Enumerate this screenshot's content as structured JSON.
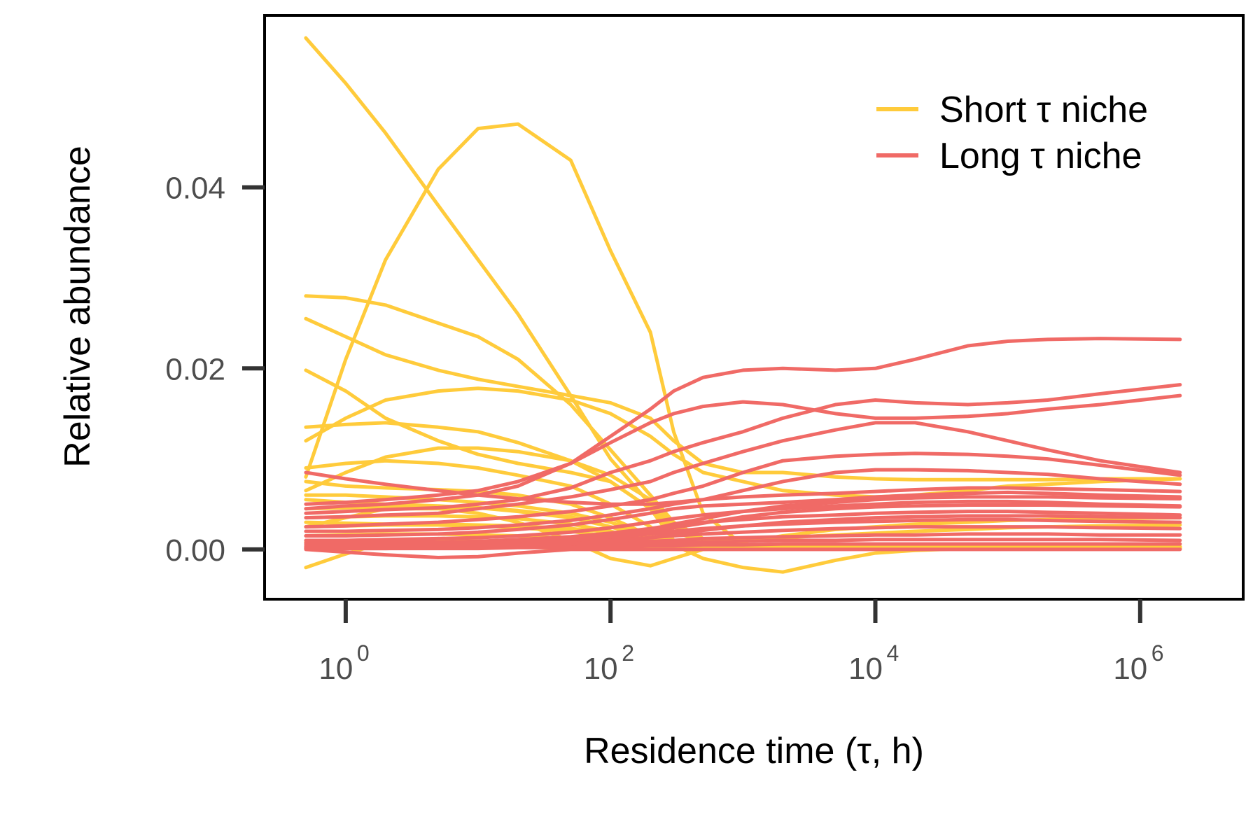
{
  "chart_data": {
    "type": "line",
    "xlabel": "Residence time (τ, h)",
    "ylabel": "Relative abundance",
    "xscale": "log10",
    "xlim": [
      0.25,
      6000000
    ],
    "ylim": [
      -0.0055,
      0.059
    ],
    "x_ticks": [
      {
        "value": 1,
        "base": "10",
        "exp": "0"
      },
      {
        "value": 100,
        "base": "10",
        "exp": "2"
      },
      {
        "value": 10000,
        "base": "10",
        "exp": "4"
      },
      {
        "value": 1000000,
        "base": "10",
        "exp": "6"
      }
    ],
    "y_ticks": [
      {
        "value": 0.0,
        "label": "0.00"
      },
      {
        "value": 0.02,
        "label": "0.02"
      },
      {
        "value": 0.04,
        "label": "0.04"
      }
    ],
    "grid": false,
    "legend_position": "top-right",
    "groups": [
      {
        "label": "Short τ niche",
        "color": "#FFCB3B"
      },
      {
        "label": "Long τ niche",
        "color": "#F06A66"
      }
    ],
    "x": [
      0.5,
      1,
      2,
      5,
      10,
      20,
      50,
      100,
      200,
      300,
      500,
      1000,
      2000,
      5000,
      10000,
      20000,
      50000,
      100000,
      200000,
      500000,
      2000000
    ],
    "series": [
      {
        "group": 0,
        "values": [
          0.0565,
          0.0515,
          0.046,
          0.038,
          0.032,
          0.026,
          0.017,
          0.01,
          0.005,
          0.0025,
          0.001,
          0.0003,
          0.0001,
          0.0001,
          0.0001,
          0.0001,
          0.0001,
          0.0001,
          0.0001,
          0.0001,
          0.0001
        ]
      },
      {
        "group": 0,
        "values": [
          0.008,
          0.021,
          0.032,
          0.042,
          0.0465,
          0.047,
          0.043,
          0.033,
          0.024,
          0.013,
          0.004,
          0.0005,
          0.0003,
          0.0002,
          0.0002,
          0.0002,
          0.0002,
          0.0002,
          0.0002,
          0.0002,
          0.0002
        ]
      },
      {
        "group": 0,
        "values": [
          0.028,
          0.0278,
          0.027,
          0.025,
          0.0235,
          0.021,
          0.016,
          0.011,
          0.006,
          0.003,
          0.0012,
          0.0004,
          0.0003,
          0.0003,
          0.0003,
          0.0003,
          0.0003,
          0.0003,
          0.0003,
          0.0003,
          0.0003
        ]
      },
      {
        "group": 0,
        "values": [
          0.0255,
          0.0235,
          0.0215,
          0.0198,
          0.0188,
          0.018,
          0.017,
          0.0162,
          0.0145,
          0.012,
          0.0095,
          0.0085,
          0.0085,
          0.008,
          0.0078,
          0.0077,
          0.0077,
          0.0077,
          0.0077,
          0.0078,
          0.0078
        ]
      },
      {
        "group": 0,
        "values": [
          0.0198,
          0.0175,
          0.0145,
          0.012,
          0.0105,
          0.0095,
          0.0085,
          0.0075,
          0.0045,
          0.001,
          0.0004,
          0.0003,
          0.0003,
          0.0003,
          0.0003,
          0.0003,
          0.0003,
          0.0003,
          0.0003,
          0.0003,
          0.0003
        ]
      },
      {
        "group": 0,
        "values": [
          0.012,
          0.0145,
          0.0165,
          0.0175,
          0.0178,
          0.0175,
          0.0165,
          0.015,
          0.0125,
          0.0105,
          0.0085,
          0.0075,
          0.0065,
          0.006,
          0.0058,
          0.006,
          0.0065,
          0.007,
          0.0072,
          0.0075,
          0.0078
        ]
      },
      {
        "group": 0,
        "values": [
          0.0135,
          0.0138,
          0.014,
          0.0135,
          0.013,
          0.0118,
          0.0098,
          0.0075,
          0.0045,
          0.002,
          0.0008,
          0.0004,
          0.0003,
          0.0003,
          0.0003,
          0.0003,
          0.0003,
          0.0003,
          0.0003,
          0.0003,
          0.0003
        ]
      },
      {
        "group": 0,
        "values": [
          0.0065,
          0.0085,
          0.0102,
          0.0112,
          0.0112,
          0.0108,
          0.0098,
          0.0082,
          0.0055,
          0.0025,
          0.001,
          0.0004,
          0.0003,
          0.0003,
          0.0003,
          0.0003,
          0.0003,
          0.0003,
          0.0003,
          0.0003,
          0.0003
        ]
      },
      {
        "group": 0,
        "values": [
          0.009,
          0.0095,
          0.0098,
          0.0095,
          0.009,
          0.0082,
          0.007,
          0.005,
          0.0025,
          0.0005,
          -0.001,
          -0.002,
          -0.0025,
          -0.0012,
          -0.0004,
          -0.0001,
          0.0001,
          0.0001,
          0.0001,
          0.0001,
          0.0001
        ]
      },
      {
        "group": 0,
        "values": [
          0.0025,
          0.0035,
          0.0045,
          0.0045,
          0.004,
          0.003,
          0.001,
          -0.001,
          -0.0018,
          -0.001,
          0.0,
          0.0002,
          0.0002,
          0.0002,
          0.0002,
          0.0002,
          0.0002,
          0.0002,
          0.0002,
          0.0002,
          0.0002
        ]
      },
      {
        "group": 0,
        "values": [
          -0.002,
          -0.0005,
          0.0008,
          0.0012,
          0.0008,
          0.0003,
          0.0001,
          0.0001,
          0.0001,
          0.0001,
          0.0001,
          0.0001,
          0.0001,
          0.0001,
          0.0001,
          0.0001,
          0.0001,
          0.0001,
          0.0001,
          0.0001,
          0.0001
        ]
      },
      {
        "group": 0,
        "values": [
          0.0075,
          0.007,
          0.0068,
          0.0066,
          0.0064,
          0.006,
          0.005,
          0.0035,
          0.0015,
          0.0005,
          0.0002,
          0.0001,
          0.0001,
          0.0001,
          0.0001,
          0.0001,
          0.0001,
          0.0001,
          0.0001,
          0.0001,
          0.0001
        ]
      },
      {
        "group": 0,
        "values": [
          0.006,
          0.006,
          0.0058,
          0.0055,
          0.0052,
          0.0048,
          0.004,
          0.003,
          0.0015,
          0.0005,
          0.0002,
          0.0001,
          0.0001,
          0.0001,
          0.0001,
          0.0001,
          0.0001,
          0.0001,
          0.0001,
          0.0001,
          0.0001
        ]
      },
      {
        "group": 0,
        "values": [
          0.0045,
          0.0046,
          0.0047,
          0.0047,
          0.0046,
          0.0043,
          0.0036,
          0.0025,
          0.0012,
          0.0004,
          0.0001,
          0.0001,
          0.0001,
          0.0001,
          0.0001,
          0.0001,
          0.0001,
          0.0001,
          0.0001,
          0.0001,
          0.0001
        ]
      },
      {
        "group": 0,
        "values": [
          0.0035,
          0.0036,
          0.0037,
          0.0037,
          0.0036,
          0.0034,
          0.0028,
          0.002,
          0.001,
          0.0003,
          0.0001,
          0.0001,
          0.0001,
          0.0001,
          0.0001,
          0.0001,
          0.0001,
          0.0001,
          0.0001,
          0.0001,
          0.0001
        ]
      },
      {
        "group": 0,
        "values": [
          0.0025,
          0.0026,
          0.0027,
          0.0027,
          0.0026,
          0.0024,
          0.002,
          0.0014,
          0.0007,
          0.0002,
          0.0001,
          0.0001,
          0.0001,
          0.0001,
          0.0001,
          0.0001,
          0.0001,
          0.0001,
          0.0001,
          0.0001,
          0.0001
        ]
      },
      {
        "group": 0,
        "values": [
          0.0015,
          0.0016,
          0.0017,
          0.0017,
          0.0016,
          0.0015,
          0.0012,
          0.0009,
          0.0005,
          0.0002,
          0.0001,
          0.0001,
          0.0001,
          0.0001,
          0.0001,
          0.0001,
          0.0001,
          0.0001,
          0.0001,
          0.0001,
          0.0001
        ]
      },
      {
        "group": 0,
        "values": [
          0.0008,
          0.0009,
          0.001,
          0.001,
          0.0009,
          0.0008,
          0.0007,
          0.0005,
          0.0003,
          0.0001,
          0.0001,
          0.0001,
          0.0001,
          0.0001,
          0.0001,
          0.0001,
          0.0001,
          0.0001,
          0.0001,
          0.0001,
          0.0001
        ]
      },
      {
        "group": 0,
        "values": [
          0.0055,
          0.0052,
          0.005,
          0.0048,
          0.0046,
          0.0042,
          0.0035,
          0.0025,
          0.0015,
          0.0008,
          0.0004,
          0.0008,
          0.0015,
          0.0022,
          0.0025,
          0.0028,
          0.003,
          0.0032,
          0.0033,
          0.0034,
          0.0035
        ]
      },
      {
        "group": 0,
        "values": [
          0.003,
          0.0029,
          0.0028,
          0.0028,
          0.0027,
          0.0026,
          0.0023,
          0.0019,
          0.0014,
          0.001,
          0.0008,
          0.001,
          0.0013,
          0.0016,
          0.0018,
          0.002,
          0.0022,
          0.0024,
          0.0025,
          0.0026,
          0.0027
        ]
      },
      {
        "group": 1,
        "values": [
          0.0045,
          0.0048,
          0.005,
          0.0055,
          0.006,
          0.007,
          0.0095,
          0.0125,
          0.0155,
          0.0175,
          0.019,
          0.0198,
          0.02,
          0.0198,
          0.02,
          0.021,
          0.0225,
          0.023,
          0.0232,
          0.0233,
          0.0232
        ]
      },
      {
        "group": 1,
        "values": [
          0.005,
          0.0052,
          0.0055,
          0.006,
          0.0065,
          0.0075,
          0.0095,
          0.0118,
          0.014,
          0.015,
          0.0158,
          0.0163,
          0.016,
          0.015,
          0.0145,
          0.0145,
          0.0147,
          0.015,
          0.0155,
          0.016,
          0.017
        ]
      },
      {
        "group": 1,
        "values": [
          0.004,
          0.0042,
          0.0044,
          0.0046,
          0.005,
          0.0055,
          0.0068,
          0.0085,
          0.0098,
          0.0108,
          0.0118,
          0.013,
          0.0145,
          0.016,
          0.0165,
          0.0162,
          0.016,
          0.0162,
          0.0165,
          0.0172,
          0.0182
        ]
      },
      {
        "group": 1,
        "values": [
          0.0035,
          0.0036,
          0.0038,
          0.004,
          0.0045,
          0.005,
          0.0058,
          0.0066,
          0.0075,
          0.0085,
          0.0095,
          0.0108,
          0.012,
          0.0132,
          0.014,
          0.014,
          0.013,
          0.012,
          0.011,
          0.0098,
          0.0085
        ]
      },
      {
        "group": 1,
        "values": [
          0.0025,
          0.0026,
          0.0028,
          0.003,
          0.0033,
          0.0036,
          0.0042,
          0.0048,
          0.0055,
          0.0062,
          0.007,
          0.0085,
          0.0098,
          0.0103,
          0.0105,
          0.0106,
          0.0105,
          0.0103,
          0.01,
          0.0093,
          0.0082
        ]
      },
      {
        "group": 1,
        "values": [
          0.0085,
          0.0078,
          0.0072,
          0.0065,
          0.006,
          0.0056,
          0.0052,
          0.005,
          0.005,
          0.0052,
          0.0055,
          0.0065,
          0.0075,
          0.0085,
          0.0088,
          0.0088,
          0.0087,
          0.0085,
          0.0083,
          0.0078,
          0.0072
        ]
      },
      {
        "group": 1,
        "values": [
          0.0,
          -0.0003,
          -0.0006,
          -0.0009,
          -0.0008,
          -0.0004,
          0.0,
          0.0,
          0.0,
          0.0,
          0.0,
          0.0,
          0.0,
          0.0,
          0.0,
          0.0,
          0.0,
          0.0,
          0.0,
          0.0,
          0.0
        ]
      },
      {
        "group": 1,
        "values": [
          0.002,
          0.002,
          0.0021,
          0.0022,
          0.0024,
          0.0027,
          0.0032,
          0.0038,
          0.0045,
          0.005,
          0.0055,
          0.0058,
          0.006,
          0.0062,
          0.0064,
          0.0066,
          0.0068,
          0.0068,
          0.0067,
          0.0066,
          0.0064
        ]
      },
      {
        "group": 1,
        "values": [
          0.0015,
          0.0015,
          0.0016,
          0.0017,
          0.0019,
          0.0022,
          0.0027,
          0.0033,
          0.004,
          0.0045,
          0.0048,
          0.005,
          0.0052,
          0.0055,
          0.0058,
          0.006,
          0.0062,
          0.0063,
          0.0062,
          0.006,
          0.0058
        ]
      },
      {
        "group": 1,
        "values": [
          0.001,
          0.001,
          0.0011,
          0.0012,
          0.0013,
          0.0015,
          0.0019,
          0.0024,
          0.003,
          0.0034,
          0.0038,
          0.0042,
          0.0045,
          0.0048,
          0.005,
          0.0052,
          0.0053,
          0.0053,
          0.0052,
          0.005,
          0.0048
        ]
      },
      {
        "group": 1,
        "values": [
          0.0007,
          0.0007,
          0.0008,
          0.0008,
          0.0009,
          0.0011,
          0.0014,
          0.0018,
          0.0023,
          0.0027,
          0.003,
          0.0033,
          0.0036,
          0.0038,
          0.004,
          0.0041,
          0.0042,
          0.0042,
          0.0041,
          0.004,
          0.0038
        ]
      },
      {
        "group": 1,
        "values": [
          0.0005,
          0.0005,
          0.0005,
          0.0006,
          0.0007,
          0.0008,
          0.001,
          0.0013,
          0.0017,
          0.002,
          0.0023,
          0.0026,
          0.0028,
          0.003,
          0.0031,
          0.0032,
          0.0033,
          0.0033,
          0.0032,
          0.0031,
          0.003
        ]
      },
      {
        "group": 1,
        "values": [
          0.0003,
          0.0003,
          0.0003,
          0.0004,
          0.0005,
          0.0006,
          0.0008,
          0.001,
          0.0013,
          0.0015,
          0.0017,
          0.0019,
          0.0021,
          0.0023,
          0.0024,
          0.0025,
          0.0025,
          0.0025,
          0.0025,
          0.0024,
          0.0023
        ]
      },
      {
        "group": 1,
        "values": [
          0.0002,
          0.0002,
          0.0002,
          0.0003,
          0.0003,
          0.0004,
          0.0005,
          0.0007,
          0.0009,
          0.001,
          0.0012,
          0.0013,
          0.0014,
          0.0015,
          0.0016,
          0.0016,
          0.0017,
          0.0017,
          0.0017,
          0.0016,
          0.0016
        ]
      },
      {
        "group": 1,
        "values": [
          0.0001,
          0.0001,
          0.0001,
          0.0002,
          0.0002,
          0.0003,
          0.0004,
          0.0005,
          0.0006,
          0.0007,
          0.0008,
          0.0009,
          0.001,
          0.001,
          0.0011,
          0.0011,
          0.0011,
          0.0011,
          0.0011,
          0.0011,
          0.001
        ]
      },
      {
        "group": 1,
        "values": [
          0.0001,
          0.0001,
          0.0001,
          0.0001,
          0.0001,
          0.0002,
          0.0002,
          0.0003,
          0.0004,
          0.0004,
          0.0005,
          0.0005,
          0.0006,
          0.0006,
          0.0006,
          0.0006,
          0.0006,
          0.0006,
          0.0006,
          0.0006,
          0.0006
        ]
      },
      {
        "group": 1,
        "values": [
          0.0003,
          0.0003,
          0.0004,
          0.0005,
          0.0006,
          0.0008,
          0.0011,
          0.0016,
          0.0022,
          0.0028,
          0.0034,
          0.0042,
          0.0048,
          0.0052,
          0.0055,
          0.0057,
          0.0058,
          0.0058,
          0.0058,
          0.0057,
          0.0056
        ]
      },
      {
        "group": 1,
        "values": [
          0.0002,
          0.0002,
          0.0003,
          0.0004,
          0.0005,
          0.0007,
          0.001,
          0.0014,
          0.0019,
          0.0024,
          0.0029,
          0.0036,
          0.0041,
          0.0045,
          0.0047,
          0.0048,
          0.0049,
          0.0049,
          0.0049,
          0.0048,
          0.0047
        ]
      },
      {
        "group": 1,
        "values": [
          0.0001,
          0.0001,
          0.0002,
          0.0002,
          0.0003,
          0.0004,
          0.0006,
          0.0009,
          0.0013,
          0.0017,
          0.0021,
          0.0026,
          0.003,
          0.0033,
          0.0035,
          0.0036,
          0.0037,
          0.0037,
          0.0037,
          0.0036,
          0.0035
        ]
      }
    ]
  }
}
